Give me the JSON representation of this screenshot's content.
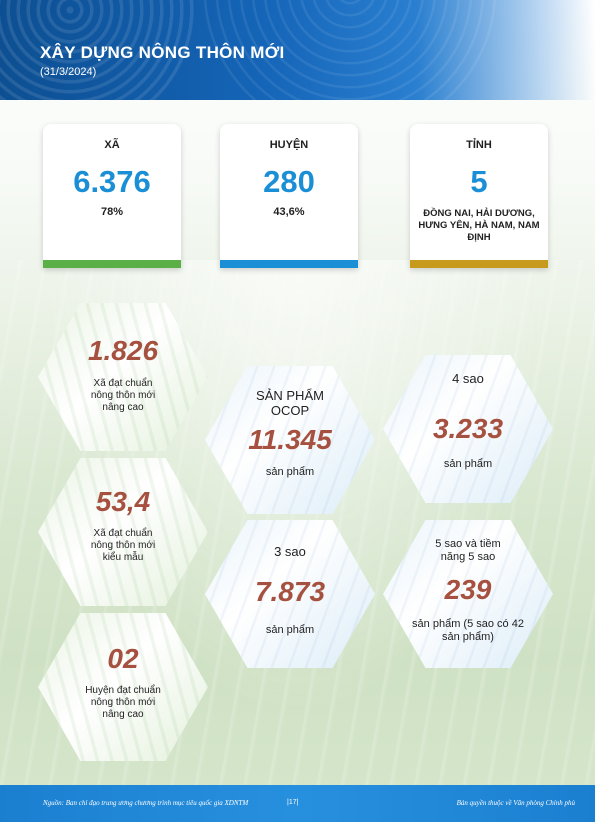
{
  "header": {
    "title": "XÂY DỰNG NÔNG THÔN MỚI",
    "date": "(31/3/2024)"
  },
  "cards": {
    "xa": {
      "label": "XÃ",
      "value": "6.376",
      "sub": "78%",
      "color": "#5ab046"
    },
    "huyen": {
      "label": "HUYỆN",
      "value": "280",
      "sub": "43,6%",
      "color": "#1b8fd6"
    },
    "tinh": {
      "label": "TỈNH",
      "value": "5",
      "provinces": "ĐỒNG NAI, HẢI DƯƠNG, HƯNG YÊN, HÀ NAM, NAM ĐỊNH",
      "color": "#c79a1c"
    }
  },
  "hexes": {
    "xa_nang_cao": {
      "value": "1.826",
      "desc": "Xã đạt chuẩn nông thôn mới nâng cao"
    },
    "xa_kieu_mau": {
      "value": "53,4",
      "desc": "Xã đạt chuẩn nông thôn mới kiểu mẫu"
    },
    "huyen_nang_cao": {
      "value": "02",
      "desc": "Huyện đạt chuẩn nông thôn mới nâng cao"
    },
    "ocop": {
      "head": "SẢN PHẨM OCOP",
      "value": "11.345",
      "foot": "sản phẩm"
    },
    "bon_sao": {
      "head": "4 sao",
      "value": "3.233",
      "foot": "sản phẩm"
    },
    "ba_sao": {
      "head": "3 sao",
      "value": "7.873",
      "foot": "sản phẩm"
    },
    "nam_sao": {
      "head": "5 sao và tiềm năng 5 sao",
      "value": "239",
      "foot": "sản phẩm (5 sao có 42 sản phẩm)"
    }
  },
  "footer": {
    "source": "Nguồn: Ban chỉ đạo trung ương chương trình mục tiêu quốc gia XDNTM",
    "page": "|17|",
    "copyright": "Bản quyền thuộc về Văn phòng Chính phủ"
  }
}
